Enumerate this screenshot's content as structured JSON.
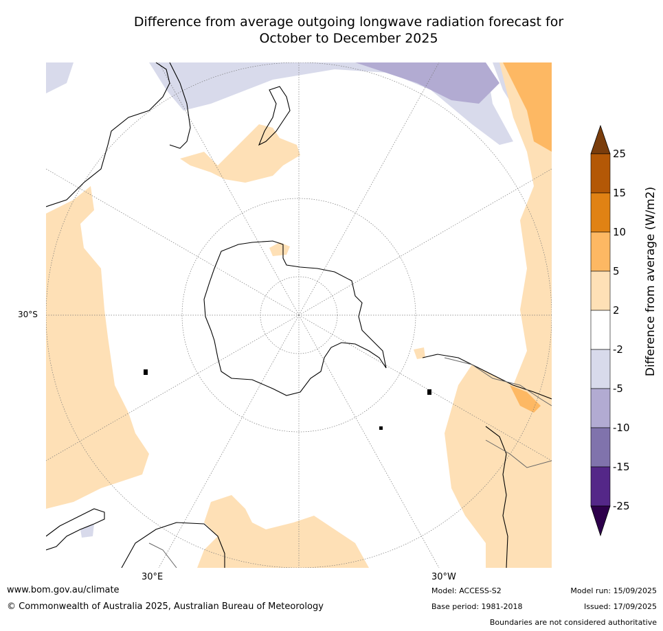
{
  "title_line1": "Difference from average outgoing longwave radiation forecast for",
  "title_line2": "October to December 2025",
  "lat_labels": [
    "30°S"
  ],
  "lon_labels": [
    "30°E",
    "30°W"
  ],
  "colorbar": {
    "label": "Difference from average (W/m2)",
    "ticks": [
      "25",
      "15",
      "10",
      "5",
      "2",
      "-2",
      "-5",
      "-10",
      "-15",
      "-25"
    ],
    "colors": {
      "gt25": "#7a3d0c",
      "15_25": "#b35806",
      "10_15": "#e08214",
      "5_10": "#fdb863",
      "2_5": "#fee0b6",
      "m2_2": "#ffffff",
      "m5_m2": "#d8daeb",
      "m10_m5": "#b2abd2",
      "m15_m10": "#8073ac",
      "m25_m15": "#542788",
      "lt_m25": "#2d004b"
    }
  },
  "footer": {
    "website": "www.bom.gov.au/climate",
    "copyright": "© Commonwealth of Australia 2025, Australian Bureau of Meteorology",
    "model": "Model: ACCESS-S2",
    "base_period": "Base period: 1981-2018",
    "model_run": "Model run: 15/09/2025",
    "issued": "Issued: 17/09/2025",
    "disclaimer": "Boundaries are not considered authoritative"
  }
}
